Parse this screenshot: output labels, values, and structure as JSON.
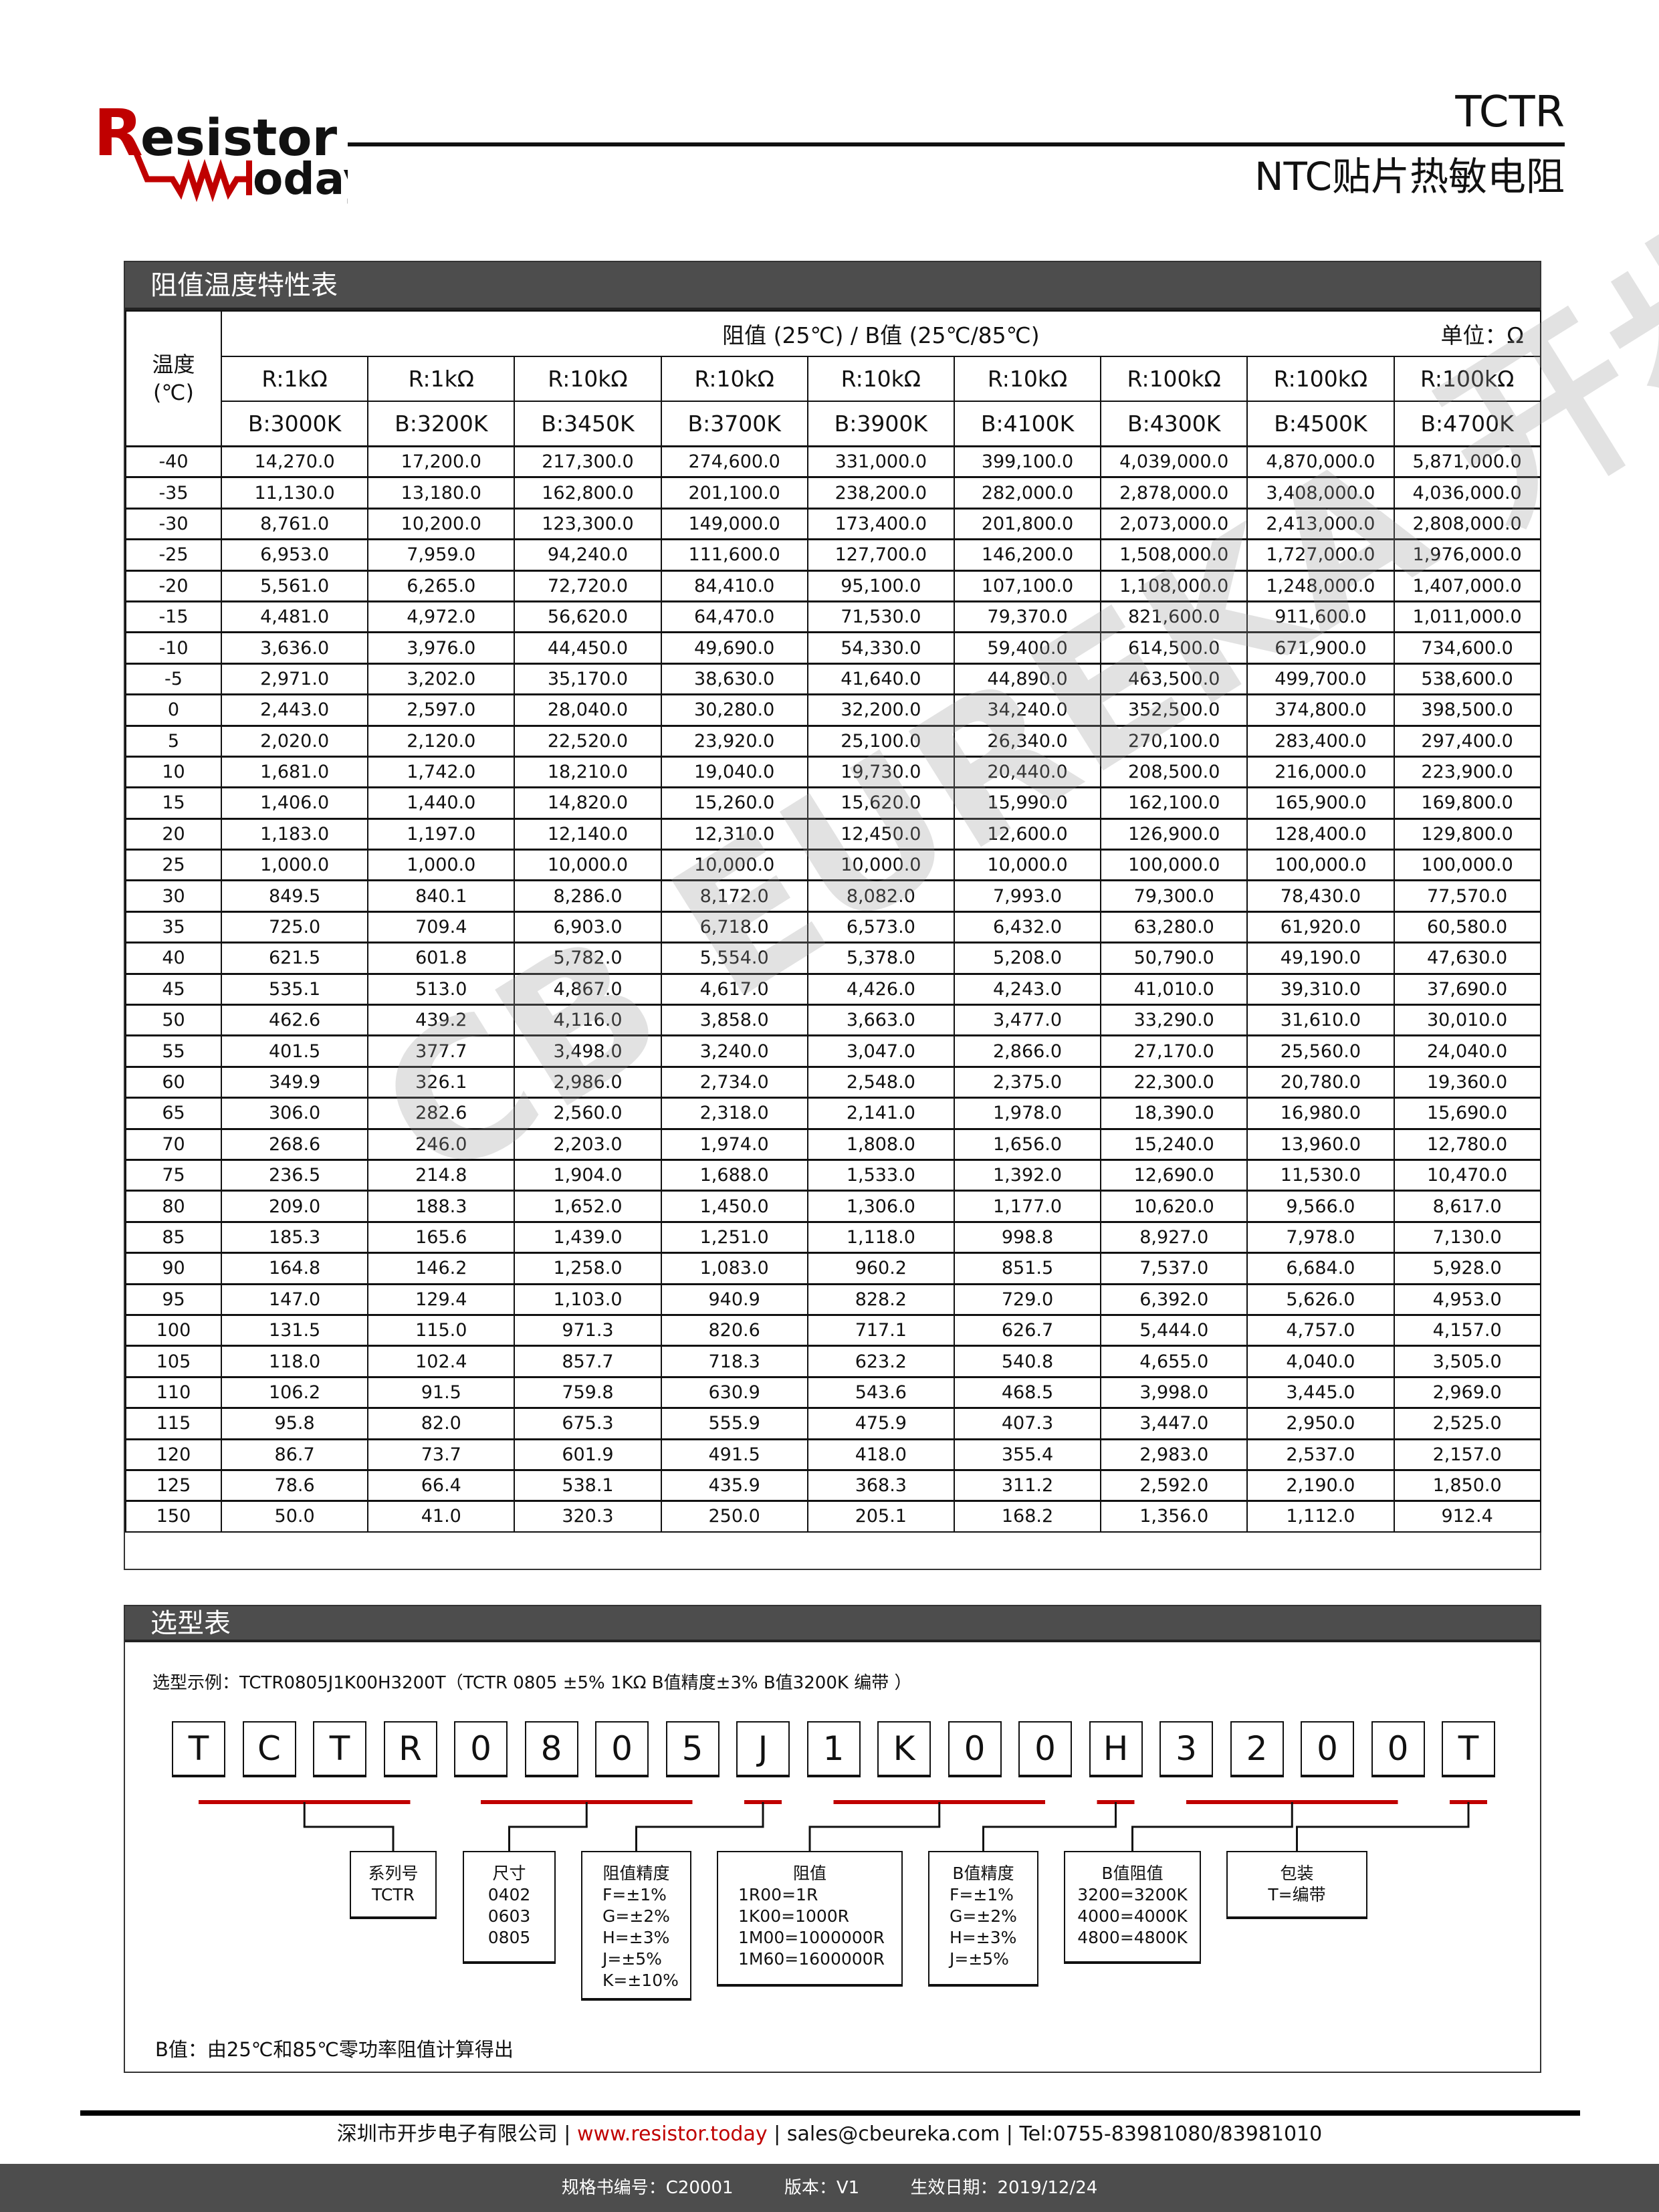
{
  "header": {
    "logo_text": "Resistor today",
    "doc_code": "TCTR",
    "doc_subtitle": "NTC贴片热敏电阻"
  },
  "watermark_text": "CB EUREKA 开步电子",
  "colors": {
    "brand_red": "#c00000",
    "title_bar": "#4d4d4d"
  },
  "rt_table": {
    "section_title": "阻值温度特性表",
    "temp_header": "温度\n(℃)",
    "temp_header_lines": [
      "温度",
      "(℃)"
    ],
    "group_header": "阻值 (25℃) / B值 (25℃/85℃)",
    "unit": "单位：Ω",
    "r_headers": [
      "R:1kΩ",
      "R:1kΩ",
      "R:10kΩ",
      "R:10kΩ",
      "R:10kΩ",
      "R:10kΩ",
      "R:100kΩ",
      "R:100kΩ",
      "R:100kΩ"
    ],
    "b_headers": [
      "B:3000K",
      "B:3200K",
      "B:3450K",
      "B:3700K",
      "B:3900K",
      "B:4100K",
      "B:4300K",
      "B:4500K",
      "B:4700K"
    ],
    "rows": [
      {
        "t": "-40",
        "v": [
          "14,270.0",
          "17,200.0",
          "217,300.0",
          "274,600.0",
          "331,000.0",
          "399,100.0",
          "4,039,000.0",
          "4,870,000.0",
          "5,871,000.0"
        ]
      },
      {
        "t": "-35",
        "v": [
          "11,130.0",
          "13,180.0",
          "162,800.0",
          "201,100.0",
          "238,200.0",
          "282,000.0",
          "2,878,000.0",
          "3,408,000.0",
          "4,036,000.0"
        ]
      },
      {
        "t": "-30",
        "v": [
          "8,761.0",
          "10,200.0",
          "123,300.0",
          "149,000.0",
          "173,400.0",
          "201,800.0",
          "2,073,000.0",
          "2,413,000.0",
          "2,808,000.0"
        ]
      },
      {
        "t": "-25",
        "v": [
          "6,953.0",
          "7,959.0",
          "94,240.0",
          "111,600.0",
          "127,700.0",
          "146,200.0",
          "1,508,000.0",
          "1,727,000.0",
          "1,976,000.0"
        ]
      },
      {
        "t": "-20",
        "v": [
          "5,561.0",
          "6,265.0",
          "72,720.0",
          "84,410.0",
          "95,100.0",
          "107,100.0",
          "1,108,000.0",
          "1,248,000.0",
          "1,407,000.0"
        ]
      },
      {
        "t": "-15",
        "v": [
          "4,481.0",
          "4,972.0",
          "56,620.0",
          "64,470.0",
          "71,530.0",
          "79,370.0",
          "821,600.0",
          "911,600.0",
          "1,011,000.0"
        ]
      },
      {
        "t": "-10",
        "v": [
          "3,636.0",
          "3,976.0",
          "44,450.0",
          "49,690.0",
          "54,330.0",
          "59,400.0",
          "614,500.0",
          "671,900.0",
          "734,600.0"
        ]
      },
      {
        "t": "-5",
        "v": [
          "2,971.0",
          "3,202.0",
          "35,170.0",
          "38,630.0",
          "41,640.0",
          "44,890.0",
          "463,500.0",
          "499,700.0",
          "538,600.0"
        ]
      },
      {
        "t": "0",
        "v": [
          "2,443.0",
          "2,597.0",
          "28,040.0",
          "30,280.0",
          "32,200.0",
          "34,240.0",
          "352,500.0",
          "374,800.0",
          "398,500.0"
        ]
      },
      {
        "t": "5",
        "v": [
          "2,020.0",
          "2,120.0",
          "22,520.0",
          "23,920.0",
          "25,100.0",
          "26,340.0",
          "270,100.0",
          "283,400.0",
          "297,400.0"
        ]
      },
      {
        "t": "10",
        "v": [
          "1,681.0",
          "1,742.0",
          "18,210.0",
          "19,040.0",
          "19,730.0",
          "20,440.0",
          "208,500.0",
          "216,000.0",
          "223,900.0"
        ]
      },
      {
        "t": "15",
        "v": [
          "1,406.0",
          "1,440.0",
          "14,820.0",
          "15,260.0",
          "15,620.0",
          "15,990.0",
          "162,100.0",
          "165,900.0",
          "169,800.0"
        ]
      },
      {
        "t": "20",
        "v": [
          "1,183.0",
          "1,197.0",
          "12,140.0",
          "12,310.0",
          "12,450.0",
          "12,600.0",
          "126,900.0",
          "128,400.0",
          "129,800.0"
        ]
      },
      {
        "t": "25",
        "v": [
          "1,000.0",
          "1,000.0",
          "10,000.0",
          "10,000.0",
          "10,000.0",
          "10,000.0",
          "100,000.0",
          "100,000.0",
          "100,000.0"
        ]
      },
      {
        "t": "30",
        "v": [
          "849.5",
          "840.1",
          "8,286.0",
          "8,172.0",
          "8,082.0",
          "7,993.0",
          "79,300.0",
          "78,430.0",
          "77,570.0"
        ]
      },
      {
        "t": "35",
        "v": [
          "725.0",
          "709.4",
          "6,903.0",
          "6,718.0",
          "6,573.0",
          "6,432.0",
          "63,280.0",
          "61,920.0",
          "60,580.0"
        ]
      },
      {
        "t": "40",
        "v": [
          "621.5",
          "601.8",
          "5,782.0",
          "5,554.0",
          "5,378.0",
          "5,208.0",
          "50,790.0",
          "49,190.0",
          "47,630.0"
        ]
      },
      {
        "t": "45",
        "v": [
          "535.1",
          "513.0",
          "4,867.0",
          "4,617.0",
          "4,426.0",
          "4,243.0",
          "41,010.0",
          "39,310.0",
          "37,690.0"
        ]
      },
      {
        "t": "50",
        "v": [
          "462.6",
          "439.2",
          "4,116.0",
          "3,858.0",
          "3,663.0",
          "3,477.0",
          "33,290.0",
          "31,610.0",
          "30,010.0"
        ]
      },
      {
        "t": "55",
        "v": [
          "401.5",
          "377.7",
          "3,498.0",
          "3,240.0",
          "3,047.0",
          "2,866.0",
          "27,170.0",
          "25,560.0",
          "24,040.0"
        ]
      },
      {
        "t": "60",
        "v": [
          "349.9",
          "326.1",
          "2,986.0",
          "2,734.0",
          "2,548.0",
          "2,375.0",
          "22,300.0",
          "20,780.0",
          "19,360.0"
        ]
      },
      {
        "t": "65",
        "v": [
          "306.0",
          "282.6",
          "2,560.0",
          "2,318.0",
          "2,141.0",
          "1,978.0",
          "18,390.0",
          "16,980.0",
          "15,690.0"
        ]
      },
      {
        "t": "70",
        "v": [
          "268.6",
          "246.0",
          "2,203.0",
          "1,974.0",
          "1,808.0",
          "1,656.0",
          "15,240.0",
          "13,960.0",
          "12,780.0"
        ]
      },
      {
        "t": "75",
        "v": [
          "236.5",
          "214.8",
          "1,904.0",
          "1,688.0",
          "1,533.0",
          "1,392.0",
          "12,690.0",
          "11,530.0",
          "10,470.0"
        ]
      },
      {
        "t": "80",
        "v": [
          "209.0",
          "188.3",
          "1,652.0",
          "1,450.0",
          "1,306.0",
          "1,177.0",
          "10,620.0",
          "9,566.0",
          "8,617.0"
        ]
      },
      {
        "t": "85",
        "v": [
          "185.3",
          "165.6",
          "1,439.0",
          "1,251.0",
          "1,118.0",
          "998.8",
          "8,927.0",
          "7,978.0",
          "7,130.0"
        ]
      },
      {
        "t": "90",
        "v": [
          "164.8",
          "146.2",
          "1,258.0",
          "1,083.0",
          "960.2",
          "851.5",
          "7,537.0",
          "6,684.0",
          "5,928.0"
        ]
      },
      {
        "t": "95",
        "v": [
          "147.0",
          "129.4",
          "1,103.0",
          "940.9",
          "828.2",
          "729.0",
          "6,392.0",
          "5,626.0",
          "4,953.0"
        ]
      },
      {
        "t": "100",
        "v": [
          "131.5",
          "115.0",
          "971.3",
          "820.6",
          "717.1",
          "626.7",
          "5,444.0",
          "4,757.0",
          "4,157.0"
        ]
      },
      {
        "t": "105",
        "v": [
          "118.0",
          "102.4",
          "857.7",
          "718.3",
          "623.2",
          "540.8",
          "4,655.0",
          "4,040.0",
          "3,505.0"
        ]
      },
      {
        "t": "110",
        "v": [
          "106.2",
          "91.5",
          "759.8",
          "630.9",
          "543.6",
          "468.5",
          "3,998.0",
          "3,445.0",
          "2,969.0"
        ]
      },
      {
        "t": "115",
        "v": [
          "95.8",
          "82.0",
          "675.3",
          "555.9",
          "475.9",
          "407.3",
          "3,447.0",
          "2,950.0",
          "2,525.0"
        ]
      },
      {
        "t": "120",
        "v": [
          "86.7",
          "73.7",
          "601.9",
          "491.5",
          "418.0",
          "355.4",
          "2,983.0",
          "2,537.0",
          "2,157.0"
        ]
      },
      {
        "t": "125",
        "v": [
          "78.6",
          "66.4",
          "538.1",
          "435.9",
          "368.3",
          "311.2",
          "2,592.0",
          "2,190.0",
          "1,850.0"
        ]
      },
      {
        "t": "150",
        "v": [
          "50.0",
          "41.0",
          "320.3",
          "250.0",
          "205.1",
          "168.2",
          "1,356.0",
          "1,112.0",
          "912.4"
        ]
      }
    ]
  },
  "selection": {
    "section_title": "选型表",
    "example": "选型示例：TCTR0805J1K00H3200T（TCTR  0805  ±5%  1KΩ  B值精度±3%  B值3200K  编带 ）",
    "code_chars": [
      "T",
      "C",
      "T",
      "R",
      "0",
      "8",
      "0",
      "5",
      "J",
      "1",
      "K",
      "0",
      "0",
      "H",
      "3",
      "2",
      "0",
      "0",
      "T"
    ],
    "fields": [
      {
        "title": "系列号",
        "lines": [
          "TCTR"
        ]
      },
      {
        "title": "尺寸",
        "lines": [
          "0402",
          "0603",
          "0805"
        ]
      },
      {
        "title": "阻值精度",
        "lines": [
          "F=±1%",
          "G=±2%",
          "H=±3%",
          "J=±5%",
          "K=±10%"
        ]
      },
      {
        "title": "阻值",
        "lines": [
          "1R00=1R",
          "1K00=1000R",
          "1M00=1000000R",
          "1M60=1600000R"
        ]
      },
      {
        "title": "B值精度",
        "lines": [
          "F=±1%",
          "G=±2%",
          "H=±3%",
          "J=±5%"
        ]
      },
      {
        "title": "B值阻值",
        "lines": [
          "3200=3200K",
          "4000=4000K",
          "4800=4800K"
        ]
      },
      {
        "title": "包装",
        "lines": [
          "T=编带"
        ]
      }
    ],
    "footnote": "B值：由25℃和85℃零功率阻值计算得出"
  },
  "footer": {
    "company": "深圳市开步电子有限公司",
    "website": "www.resistor.today",
    "email": "sales@cbeureka.com",
    "tel": "Tel:0755-83981080/83981010",
    "sep": "|",
    "spec_no": "规格书编号：C20001",
    "version": "版本：V1",
    "effective_date": "生效日期：2019/12/24"
  }
}
